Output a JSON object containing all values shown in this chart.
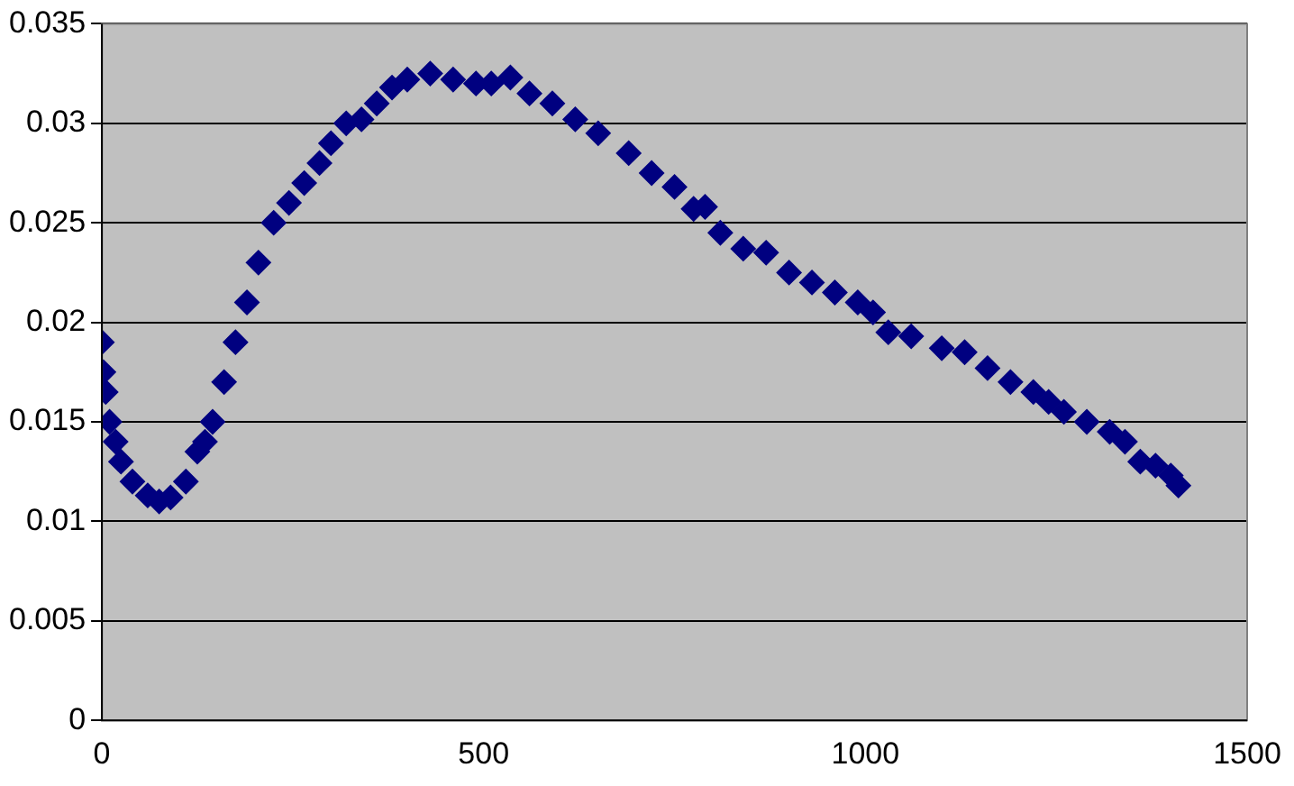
{
  "chart_data": {
    "type": "scatter",
    "marker": "diamond",
    "grid": "y",
    "legend": false,
    "xlim": [
      0,
      1500
    ],
    "xticks": [
      0,
      500,
      1000,
      1500
    ],
    "ylim": [
      0,
      0.035
    ],
    "yticks": [
      0,
      0.005,
      0.01,
      0.015,
      0.02,
      0.025,
      0.03,
      0.035
    ],
    "series": [
      {
        "color": "#000080",
        "x": [
          0,
          2,
          5,
          10,
          18,
          25,
          40,
          60,
          75,
          90,
          110,
          125,
          135,
          145,
          160,
          175,
          190,
          205,
          225,
          245,
          265,
          285,
          300,
          320,
          340,
          360,
          380,
          400,
          430,
          460,
          490,
          510,
          535,
          560,
          590,
          620,
          650,
          690,
          720,
          750,
          775,
          790,
          810,
          840,
          870,
          900,
          930,
          960,
          990,
          1010,
          1030,
          1060,
          1100,
          1130,
          1160,
          1190,
          1220,
          1240,
          1260,
          1290,
          1320,
          1340,
          1360,
          1380,
          1400,
          1410
        ],
        "values": [
          0.019,
          0.0175,
          0.0165,
          0.015,
          0.014,
          0.013,
          0.012,
          0.0113,
          0.011,
          0.0112,
          0.012,
          0.0135,
          0.014,
          0.015,
          0.017,
          0.019,
          0.021,
          0.023,
          0.025,
          0.026,
          0.027,
          0.028,
          0.029,
          0.03,
          0.0302,
          0.031,
          0.0318,
          0.0322,
          0.0325,
          0.0322,
          0.032,
          0.032,
          0.0323,
          0.0315,
          0.031,
          0.0302,
          0.0295,
          0.0285,
          0.0275,
          0.0268,
          0.0257,
          0.0258,
          0.0245,
          0.0237,
          0.0235,
          0.0225,
          0.022,
          0.0215,
          0.021,
          0.0205,
          0.0195,
          0.0193,
          0.0187,
          0.0185,
          0.0177,
          0.017,
          0.0165,
          0.016,
          0.0155,
          0.015,
          0.0145,
          0.014,
          0.013,
          0.0128,
          0.0123,
          0.0118
        ]
      }
    ]
  }
}
